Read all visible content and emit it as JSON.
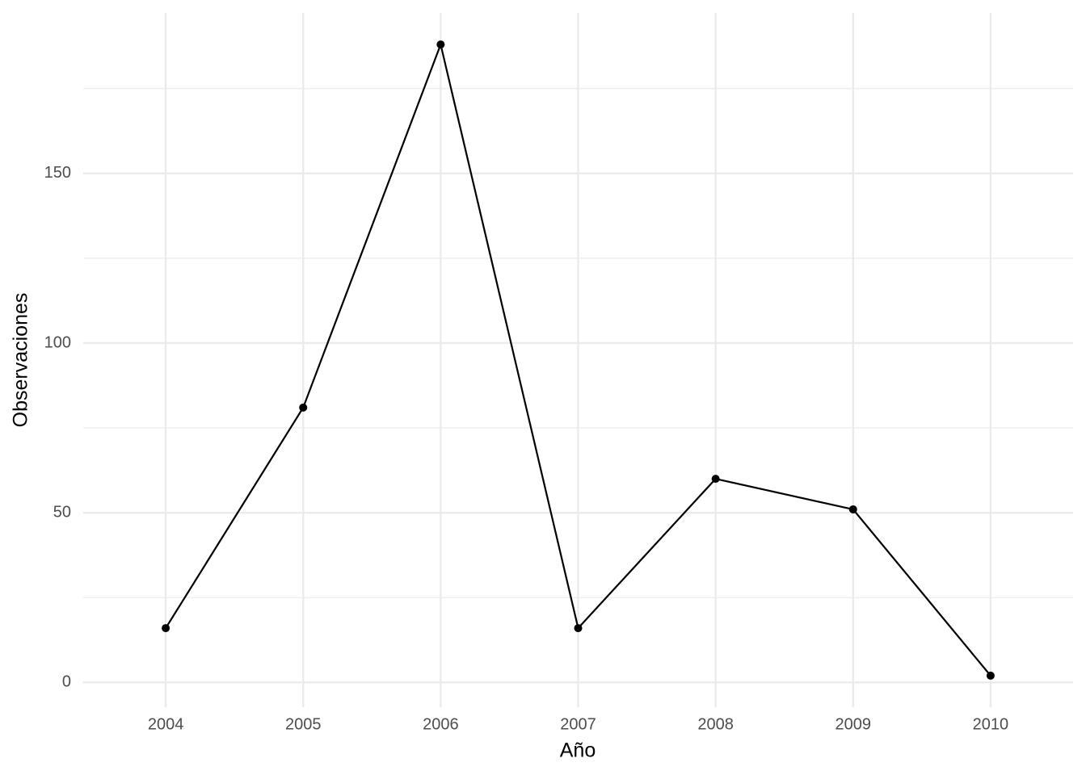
{
  "chart_data": {
    "type": "line",
    "x_label": "Año",
    "y_label": "Observaciones",
    "x": [
      2004,
      2005,
      2006,
      2007,
      2008,
      2009,
      2010
    ],
    "series": [
      {
        "name": "Observaciones",
        "color": "#000000",
        "values": [
          16,
          81,
          188,
          16,
          60,
          51,
          2
        ]
      }
    ],
    "xlim": [
      2003.4,
      2010.6
    ],
    "xticks": [
      2004,
      2005,
      2006,
      2007,
      2008,
      2009,
      2010
    ],
    "ylim": [
      -7.3,
      197.3
    ],
    "yticks": [
      0,
      50,
      100,
      150
    ],
    "yminor": [
      25,
      75,
      125,
      175
    ],
    "grid": true
  }
}
